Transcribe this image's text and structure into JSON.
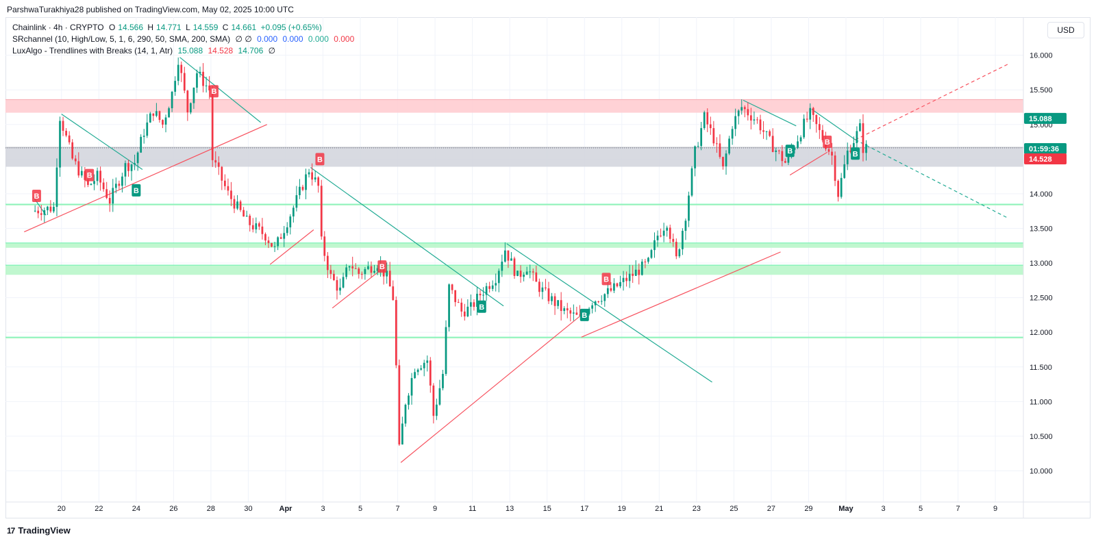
{
  "header": {
    "publisher_line": "ParshwaTurakhiya28 published on TradingView.com, May 02, 2025 10:00 UTC"
  },
  "legend": {
    "symbol": "Chainlink · 4h · CRYPTO",
    "ohlc": {
      "o_label": "O",
      "o": "14.566",
      "h_label": "H",
      "h": "14.771",
      "l_label": "L",
      "l": "14.559",
      "c_label": "C",
      "c": "14.661",
      "change": "+0.095 (+0.65%)"
    },
    "indicator1": {
      "name": "SRchannel (10, High/Low, 5, 1, 6, 290, 50, SMA, 200, SMA)",
      "glyph": "∅ ∅",
      "v1": "0.000",
      "v2": "0.000",
      "v3": "0.000",
      "v4": "0.000"
    },
    "indicator2": {
      "name": "LuxAlgo - Trendlines with Breaks (14, 1, Atr)",
      "v1": "15.088",
      "v2": "14.528",
      "v3": "14.706",
      "glyph": "∅"
    }
  },
  "currency_button": "USD",
  "footer": {
    "brand": "TradingView",
    "logo": "17"
  },
  "colors": {
    "up": "#089981",
    "down": "#f23645",
    "resistance_zone": "#ffcdd2",
    "support_zone": "#b9f6ca",
    "neutral_zone": "#d1d4dc",
    "trend_teal": "#22ab94",
    "trend_red": "#f7525f"
  },
  "chart_data": {
    "type": "candlestick",
    "title": "Chainlink · 4h · CRYPTO",
    "ylim": [
      9.55,
      16.55
    ],
    "y_ticks": [
      "16.000",
      "15.500",
      "15.000",
      "14.500",
      "14.000",
      "13.500",
      "13.000",
      "12.500",
      "12.000",
      "11.500",
      "11.000",
      "10.500",
      "10.000"
    ],
    "x_ticks": [
      {
        "label": "20",
        "date": "2025-03-20"
      },
      {
        "label": "22",
        "date": "2025-03-22"
      },
      {
        "label": "24",
        "date": "2025-03-24"
      },
      {
        "label": "26",
        "date": "2025-03-26"
      },
      {
        "label": "28",
        "date": "2025-03-28"
      },
      {
        "label": "30",
        "date": "2025-03-30"
      },
      {
        "label": "Apr",
        "date": "2025-04-01"
      },
      {
        "label": "3",
        "date": "2025-04-03"
      },
      {
        "label": "5",
        "date": "2025-04-05"
      },
      {
        "label": "7",
        "date": "2025-04-07"
      },
      {
        "label": "9",
        "date": "2025-04-09"
      },
      {
        "label": "11",
        "date": "2025-04-11"
      },
      {
        "label": "13",
        "date": "2025-04-13"
      },
      {
        "label": "15",
        "date": "2025-04-15"
      },
      {
        "label": "17",
        "date": "2025-04-17"
      },
      {
        "label": "19",
        "date": "2025-04-19"
      },
      {
        "label": "21",
        "date": "2025-04-21"
      },
      {
        "label": "23",
        "date": "2025-04-23"
      },
      {
        "label": "25",
        "date": "2025-04-25"
      },
      {
        "label": "27",
        "date": "2025-04-27"
      },
      {
        "label": "29",
        "date": "2025-04-29"
      },
      {
        "label": "May",
        "date": "2025-05-01"
      },
      {
        "label": "3",
        "date": "2025-05-03"
      },
      {
        "label": "5",
        "date": "2025-05-05"
      },
      {
        "label": "7",
        "date": "2025-05-07"
      },
      {
        "label": "9",
        "date": "2025-05-09"
      }
    ],
    "price_path": [
      [
        "2025-03-18T12:00",
        13.75
      ],
      [
        "2025-03-19T16:00",
        13.8
      ],
      [
        "2025-03-20T00:00",
        15.12
      ],
      [
        "2025-03-20T16:00",
        14.5
      ],
      [
        "2025-03-21T12:00",
        14.1
      ],
      [
        "2025-03-22T00:00",
        14.25
      ],
      [
        "2025-03-22T16:00",
        13.9
      ],
      [
        "2025-03-23T12:00",
        14.4
      ],
      [
        "2025-03-24T00:00",
        14.45
      ],
      [
        "2025-03-24T12:00",
        14.9
      ],
      [
        "2025-03-25T00:00",
        15.2
      ],
      [
        "2025-03-25T12:00",
        15.0
      ],
      [
        "2025-03-26T00:00",
        15.45
      ],
      [
        "2025-03-26T08:00",
        15.95
      ],
      [
        "2025-03-26T20:00",
        15.2
      ],
      [
        "2025-03-27T08:00",
        15.75
      ],
      [
        "2025-03-28T00:00",
        15.5
      ],
      [
        "2025-03-28T04:00",
        14.5
      ],
      [
        "2025-03-29T00:00",
        14.0
      ],
      [
        "2025-03-30T00:00",
        13.6
      ],
      [
        "2025-03-31T00:00",
        13.4
      ],
      [
        "2025-03-31T12:00",
        13.2
      ],
      [
        "2025-04-01T00:00",
        13.5
      ],
      [
        "2025-04-01T12:00",
        13.8
      ],
      [
        "2025-04-02T08:00",
        14.35
      ],
      [
        "2025-04-02T20:00",
        14.1
      ],
      [
        "2025-04-03T00:00",
        13.3
      ],
      [
        "2025-04-03T12:00",
        12.8
      ],
      [
        "2025-04-04T00:00",
        12.6
      ],
      [
        "2025-04-04T12:00",
        13.0
      ],
      [
        "2025-04-05T00:00",
        12.85
      ],
      [
        "2025-04-06T00:00",
        13.0
      ],
      [
        "2025-04-06T12:00",
        12.8
      ],
      [
        "2025-04-06T20:00",
        12.5
      ],
      [
        "2025-04-07T00:00",
        11.5
      ],
      [
        "2025-04-07T04:00",
        10.3
      ],
      [
        "2025-04-07T12:00",
        11.0
      ],
      [
        "2025-04-08T00:00",
        11.5
      ],
      [
        "2025-04-08T16:00",
        11.6
      ],
      [
        "2025-04-09T00:00",
        10.8
      ],
      [
        "2025-04-09T12:00",
        11.4
      ],
      [
        "2025-04-09T20:00",
        12.65
      ],
      [
        "2025-04-10T12:00",
        12.3
      ],
      [
        "2025-04-11T00:00",
        12.35
      ],
      [
        "2025-04-11T12:00",
        12.55
      ],
      [
        "2025-04-12T08:00",
        12.8
      ],
      [
        "2025-04-12T20:00",
        13.2
      ],
      [
        "2025-04-13T12:00",
        12.8
      ],
      [
        "2025-04-14T00:00",
        12.95
      ],
      [
        "2025-04-14T12:00",
        12.7
      ],
      [
        "2025-04-15T00:00",
        12.55
      ],
      [
        "2025-04-16T00:00",
        12.3
      ],
      [
        "2025-04-16T20:00",
        12.2
      ],
      [
        "2025-04-17T12:00",
        12.45
      ],
      [
        "2025-04-18T12:00",
        12.6
      ],
      [
        "2025-04-19T12:00",
        12.8
      ],
      [
        "2025-04-20T12:00",
        13.0
      ],
      [
        "2025-04-21T00:00",
        13.4
      ],
      [
        "2025-04-21T12:00",
        13.6
      ],
      [
        "2025-04-22T00:00",
        13.05
      ],
      [
        "2025-04-22T12:00",
        13.7
      ],
      [
        "2025-04-23T00:00",
        14.6
      ],
      [
        "2025-04-23T12:00",
        15.1
      ],
      [
        "2025-04-24T00:00",
        14.8
      ],
      [
        "2025-04-24T12:00",
        14.35
      ],
      [
        "2025-04-25T00:00",
        15.0
      ],
      [
        "2025-04-25T12:00",
        15.25
      ],
      [
        "2025-04-26T08:00",
        15.05
      ],
      [
        "2025-04-27T00:00",
        14.75
      ],
      [
        "2025-04-27T20:00",
        14.45
      ],
      [
        "2025-04-28T12:00",
        14.8
      ],
      [
        "2025-04-28T20:00",
        15.0
      ],
      [
        "2025-04-29T04:00",
        15.15
      ],
      [
        "2025-04-29T20:00",
        14.8
      ],
      [
        "2025-04-30T08:00",
        14.55
      ],
      [
        "2025-04-30T16:00",
        14.0
      ],
      [
        "2025-05-01T04:00",
        14.6
      ],
      [
        "2025-05-01T20:00",
        14.95
      ],
      [
        "2025-05-02T00:00",
        14.661
      ]
    ],
    "zones": [
      {
        "kind": "resistance",
        "from": 15.17,
        "to": 15.36
      },
      {
        "kind": "neutral",
        "from": 14.39,
        "to": 14.67
      },
      {
        "kind": "support",
        "from": 13.83,
        "to": 13.85
      },
      {
        "kind": "support",
        "from": 13.22,
        "to": 13.29
      },
      {
        "kind": "support",
        "from": 12.83,
        "to": 12.97
      },
      {
        "kind": "support",
        "from": 11.91,
        "to": 11.93
      }
    ],
    "trendlines": [
      {
        "color": "teal",
        "from": [
          "2025-03-18T12:00",
          13.95
        ],
        "to": [
          "2025-03-19T04:00",
          13.69
        ]
      },
      {
        "color": "teal",
        "from": [
          "2025-03-20T00:00",
          15.15
        ],
        "to": [
          "2025-03-24T08:00",
          14.35
        ]
      },
      {
        "color": "teal",
        "from": [
          "2025-03-26T08:00",
          15.97
        ],
        "to": [
          "2025-03-30T16:00",
          15.03
        ]
      },
      {
        "color": "teal",
        "from": [
          "2025-04-02T08:00",
          14.38
        ],
        "to": [
          "2025-04-12T16:00",
          12.38
        ]
      },
      {
        "color": "teal",
        "from": [
          "2025-04-12T20:00",
          13.28
        ],
        "to": [
          "2025-04-23T20:00",
          11.28
        ]
      },
      {
        "color": "teal",
        "from": [
          "2025-04-25T12:00",
          15.35
        ],
        "to": [
          "2025-04-28T08:00",
          14.98
        ]
      },
      {
        "color": "teal",
        "from": [
          "2025-04-29T04:00",
          15.22
        ],
        "to": [
          "2025-05-01T12:00",
          14.78
        ]
      },
      {
        "color": "teal",
        "dashed": true,
        "from": [
          "2025-05-01T12:00",
          14.78
        ],
        "to": [
          "2025-05-09T16:00",
          13.65
        ]
      },
      {
        "color": "red",
        "from": [
          "2025-03-18T00:00",
          13.45
        ],
        "to": [
          "2025-03-31T00:00",
          15.0
        ]
      },
      {
        "color": "red",
        "from": [
          "2025-03-31T04:00",
          12.98
        ],
        "to": [
          "2025-04-02T12:00",
          13.48
        ]
      },
      {
        "color": "red",
        "from": [
          "2025-04-03T12:00",
          12.35
        ],
        "to": [
          "2025-04-06T00:00",
          12.88
        ]
      },
      {
        "color": "red",
        "from": [
          "2025-04-07T04:00",
          10.12
        ],
        "to": [
          "2025-04-16T20:00",
          12.25
        ]
      },
      {
        "color": "red",
        "from": [
          "2025-04-16T20:00",
          11.93
        ],
        "to": [
          "2025-04-27T12:00",
          13.16
        ]
      },
      {
        "color": "red",
        "from": [
          "2025-04-28T00:00",
          14.27
        ],
        "to": [
          "2025-04-30T00:00",
          14.6
        ]
      },
      {
        "color": "red",
        "dashed": true,
        "from": [
          "2025-05-01T12:00",
          14.78
        ],
        "to": [
          "2025-05-09T16:00",
          15.87
        ]
      }
    ],
    "markers": [
      {
        "label": "B",
        "kind": "bull",
        "at": [
          "2025-03-24T00:00",
          14.05
        ]
      },
      {
        "label": "B",
        "kind": "bull",
        "at": [
          "2025-04-11T12:00",
          12.37
        ]
      },
      {
        "label": "B",
        "kind": "bull",
        "at": [
          "2025-04-17T00:00",
          12.25
        ]
      },
      {
        "label": "B",
        "kind": "bull",
        "at": [
          "2025-04-28T00:00",
          14.62
        ]
      },
      {
        "label": "B",
        "kind": "bull",
        "at": [
          "2025-05-01T12:00",
          14.58
        ]
      },
      {
        "label": "B",
        "kind": "bear",
        "at": [
          "2025-03-18T16:00",
          13.97
        ]
      },
      {
        "label": "B",
        "kind": "bear",
        "at": [
          "2025-03-21T12:00",
          14.27
        ]
      },
      {
        "label": "B",
        "kind": "bear",
        "at": [
          "2025-03-28T04:00",
          15.48
        ]
      },
      {
        "label": "B",
        "kind": "bear",
        "at": [
          "2025-04-02T20:00",
          14.5
        ]
      },
      {
        "label": "B",
        "kind": "bear",
        "at": [
          "2025-04-06T04:00",
          12.95
        ]
      },
      {
        "label": "B",
        "kind": "bear",
        "at": [
          "2025-04-18T04:00",
          12.77
        ]
      },
      {
        "label": "B",
        "kind": "bear",
        "at": [
          "2025-04-30T00:00",
          14.75
        ]
      }
    ],
    "price_labels": [
      {
        "text": "15.088",
        "value": 15.088,
        "kind": "up"
      },
      {
        "text": "01:59:36",
        "value": 14.661,
        "kind": "up"
      },
      {
        "text": "14.528",
        "value": 14.528,
        "kind": "down"
      }
    ],
    "current_price": 14.661
  }
}
